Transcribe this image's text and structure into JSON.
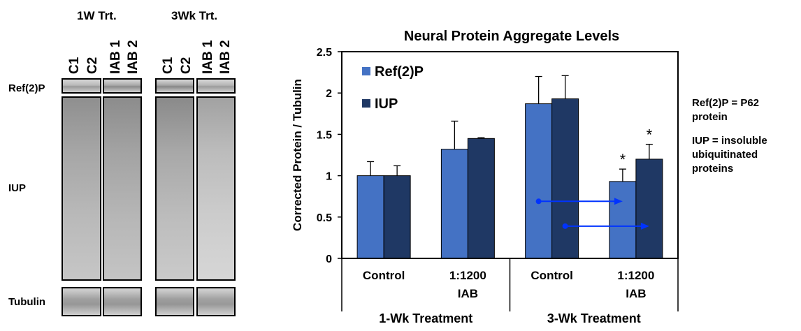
{
  "blot": {
    "headers": [
      "1W Trt.",
      "3Wk Trt."
    ],
    "lanes": [
      "C1",
      "C2",
      "IAB 1",
      "IAB 2",
      "C1",
      "C2",
      "IAB 1",
      "IAB 2"
    ],
    "rows": [
      "Ref(2)P",
      "IUP",
      "Tubulin"
    ]
  },
  "notes": {
    "ref2p": [
      "Ref(2)P = P62",
      "protein"
    ],
    "iup": [
      "IUP = insoluble",
      "ubiquitinated",
      "proteins"
    ]
  },
  "colors": {
    "ref2p": "#4472c4",
    "iup": "#1f3864",
    "arrow": "#0033ff"
  },
  "chart_data": {
    "type": "bar",
    "title": "Neural Protein Aggregate Levels",
    "ylabel": "Corrected Protein / Tubulin",
    "xlabel": "",
    "ylim": [
      0,
      2.5
    ],
    "yticks": [
      "0",
      "0.5",
      "1",
      "1.5",
      "2",
      "2.5"
    ],
    "categories": [
      "Control",
      "1:1200 IAB",
      "Control",
      "1:1200 IAB"
    ],
    "category_lines": [
      [
        "Control"
      ],
      [
        "1:1200",
        "IAB"
      ],
      [
        "Control"
      ],
      [
        "1:1200",
        "IAB"
      ]
    ],
    "groups": [
      "1-Wk Treatment",
      "3-Wk Treatment"
    ],
    "series": [
      {
        "name": "Ref(2)P",
        "values": [
          1.0,
          1.32,
          1.87,
          0.93
        ],
        "errors": [
          0.17,
          0.34,
          0.33,
          0.15
        ]
      },
      {
        "name": "IUP",
        "values": [
          1.0,
          1.45,
          1.93,
          1.2
        ],
        "errors": [
          0.12,
          0.01,
          0.28,
          0.18
        ]
      }
    ],
    "significance": [
      {
        "series": "Ref(2)P",
        "category_index": 3,
        "mark": "*"
      },
      {
        "series": "IUP",
        "category_index": 3,
        "mark": "*"
      }
    ],
    "arrows": [
      {
        "from_category": 2,
        "to_category": 3,
        "series": "Ref(2)P",
        "at_value": 0.69
      },
      {
        "from_category": 2,
        "to_category": 3,
        "series": "IUP",
        "at_value": 0.39
      }
    ],
    "legend_position": "top-left"
  }
}
